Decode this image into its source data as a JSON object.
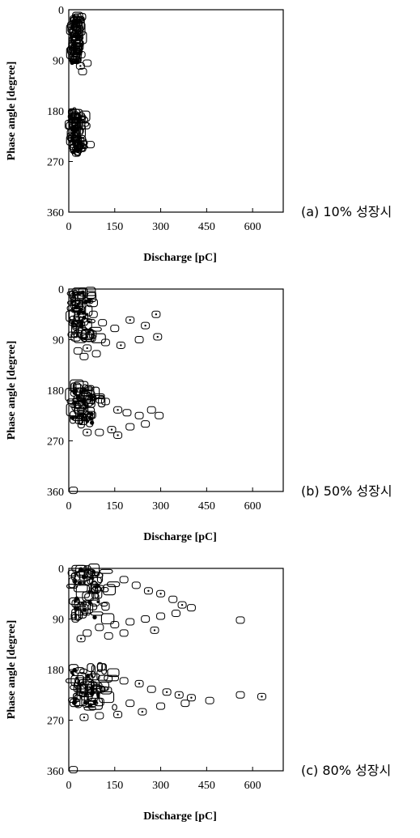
{
  "chart_data": [
    {
      "type": "scatter",
      "caption": "(a) 10% 성장시",
      "xlabel": "Discharge [pC]",
      "ylabel": "Phase angle [degree]",
      "xlim": [
        0,
        700
      ],
      "ylim": [
        0,
        360
      ],
      "y_inverted": true,
      "xticks": [
        "0",
        "150",
        "300",
        "450",
        "600"
      ],
      "yticks": [
        "0",
        "90",
        "180",
        "270",
        "360"
      ],
      "clusters": [
        {
          "x_range": [
            10,
            45
          ],
          "y_range": [
            10,
            95
          ]
        },
        {
          "x_range": [
            10,
            55
          ],
          "y_range": [
            180,
            255
          ]
        }
      ],
      "points": [
        {
          "x": 18,
          "y": 20
        },
        {
          "x": 25,
          "y": 30
        },
        {
          "x": 30,
          "y": 45
        },
        {
          "x": 22,
          "y": 55
        },
        {
          "x": 35,
          "y": 60
        },
        {
          "x": 28,
          "y": 75
        },
        {
          "x": 40,
          "y": 80
        },
        {
          "x": 20,
          "y": 90
        },
        {
          "x": 60,
          "y": 95
        },
        {
          "x": 45,
          "y": 110
        },
        {
          "x": 38,
          "y": 100
        },
        {
          "x": 18,
          "y": 190
        },
        {
          "x": 25,
          "y": 205
        },
        {
          "x": 35,
          "y": 215
        },
        {
          "x": 20,
          "y": 230
        },
        {
          "x": 45,
          "y": 235
        },
        {
          "x": 30,
          "y": 245
        },
        {
          "x": 70,
          "y": 240
        },
        {
          "x": 25,
          "y": 255
        }
      ]
    },
    {
      "type": "scatter",
      "caption": "(b) 50% 성장시",
      "xlabel": "Discharge [pC]",
      "ylabel": "Phase angle [degree]",
      "xlim": [
        0,
        700
      ],
      "ylim": [
        0,
        360
      ],
      "y_inverted": true,
      "xticks": [
        "0",
        "150",
        "300",
        "450",
        "600"
      ],
      "yticks": [
        "0",
        "90",
        "180",
        "270",
        "360"
      ],
      "clusters": [
        {
          "x_range": [
            10,
            110
          ],
          "y_range": [
            5,
            90
          ]
        },
        {
          "x_range": [
            10,
            120
          ],
          "y_range": [
            170,
            240
          ]
        }
      ],
      "points": [
        {
          "x": 40,
          "y": 30
        },
        {
          "x": 80,
          "y": 45
        },
        {
          "x": 110,
          "y": 60
        },
        {
          "x": 150,
          "y": 70
        },
        {
          "x": 200,
          "y": 55
        },
        {
          "x": 250,
          "y": 65
        },
        {
          "x": 285,
          "y": 45
        },
        {
          "x": 290,
          "y": 85
        },
        {
          "x": 230,
          "y": 90
        },
        {
          "x": 170,
          "y": 100
        },
        {
          "x": 120,
          "y": 95
        },
        {
          "x": 60,
          "y": 105
        },
        {
          "x": 30,
          "y": 110
        },
        {
          "x": 90,
          "y": 115
        },
        {
          "x": 50,
          "y": 120
        },
        {
          "x": 120,
          "y": 200
        },
        {
          "x": 160,
          "y": 215
        },
        {
          "x": 190,
          "y": 220
        },
        {
          "x": 230,
          "y": 225
        },
        {
          "x": 270,
          "y": 215
        },
        {
          "x": 295,
          "y": 225
        },
        {
          "x": 250,
          "y": 240
        },
        {
          "x": 200,
          "y": 245
        },
        {
          "x": 140,
          "y": 250
        },
        {
          "x": 100,
          "y": 255
        },
        {
          "x": 60,
          "y": 255
        },
        {
          "x": 160,
          "y": 260
        },
        {
          "x": 15,
          "y": 358
        }
      ]
    },
    {
      "type": "scatter",
      "caption": "(c) 80% 성장시",
      "xlabel": "Discharge [pC]",
      "ylabel": "Phase angle [degree]",
      "xlim": [
        0,
        700
      ],
      "ylim": [
        0,
        360
      ],
      "y_inverted": true,
      "xticks": [
        "0",
        "150",
        "300",
        "450",
        "600"
      ],
      "yticks": [
        "0",
        "90",
        "180",
        "270",
        "360"
      ],
      "clusters": [
        {
          "x_range": [
            10,
            160
          ],
          "y_range": [
            0,
            90
          ]
        },
        {
          "x_range": [
            10,
            170
          ],
          "y_range": [
            175,
            250
          ]
        }
      ],
      "points": [
        {
          "x": 180,
          "y": 20
        },
        {
          "x": 220,
          "y": 30
        },
        {
          "x": 260,
          "y": 40
        },
        {
          "x": 300,
          "y": 45
        },
        {
          "x": 340,
          "y": 55
        },
        {
          "x": 370,
          "y": 65
        },
        {
          "x": 400,
          "y": 70
        },
        {
          "x": 350,
          "y": 80
        },
        {
          "x": 300,
          "y": 85
        },
        {
          "x": 250,
          "y": 90
        },
        {
          "x": 200,
          "y": 95
        },
        {
          "x": 150,
          "y": 100
        },
        {
          "x": 100,
          "y": 105
        },
        {
          "x": 60,
          "y": 115
        },
        {
          "x": 40,
          "y": 125
        },
        {
          "x": 130,
          "y": 120
        },
        {
          "x": 180,
          "y": 115
        },
        {
          "x": 280,
          "y": 110
        },
        {
          "x": 560,
          "y": 92
        },
        {
          "x": 180,
          "y": 200
        },
        {
          "x": 230,
          "y": 205
        },
        {
          "x": 270,
          "y": 215
        },
        {
          "x": 320,
          "y": 220
        },
        {
          "x": 360,
          "y": 225
        },
        {
          "x": 400,
          "y": 230
        },
        {
          "x": 460,
          "y": 235
        },
        {
          "x": 560,
          "y": 225
        },
        {
          "x": 630,
          "y": 228
        },
        {
          "x": 380,
          "y": 240
        },
        {
          "x": 300,
          "y": 245
        },
        {
          "x": 240,
          "y": 255
        },
        {
          "x": 160,
          "y": 260
        },
        {
          "x": 100,
          "y": 262
        },
        {
          "x": 50,
          "y": 265
        },
        {
          "x": 200,
          "y": 240
        },
        {
          "x": 15,
          "y": 358
        }
      ]
    }
  ]
}
